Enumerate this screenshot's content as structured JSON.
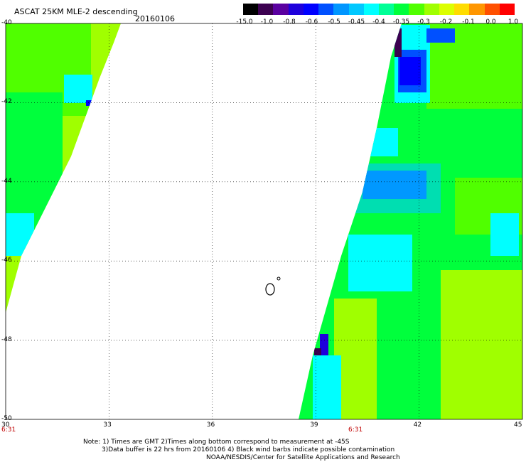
{
  "title": "ASCAT 25KM MLE-2 descending",
  "date": "20160106",
  "colorbar": {
    "labels": [
      "-15.0",
      "-1.0",
      "-0.8",
      "-0.6",
      "-0.5",
      "-0.45",
      "-0.4",
      "-0.35",
      "-0.3",
      "-0.2",
      "-0.1",
      "0.0",
      "1.0"
    ],
    "colors": [
      "#000000",
      "#3c0050",
      "#5a00a0",
      "#1e00dc",
      "#0000ff",
      "#0050ff",
      "#0096ff",
      "#00c8ff",
      "#00ffff",
      "#00ff96",
      "#00ff3c",
      "#50ff00",
      "#a0ff00",
      "#dcff00",
      "#ffdc00",
      "#ff9600",
      "#ff5000",
      "#ff0000"
    ]
  },
  "x_axis": {
    "labels": [
      "30",
      "33",
      "36",
      "39",
      "42",
      "45"
    ]
  },
  "y_axis": {
    "labels": [
      "-40",
      "-42",
      "-44",
      "-46",
      "-48",
      "-50"
    ]
  },
  "time_labels": [
    "6:31",
    "6:31"
  ],
  "notes": [
    "Note: 1) Times are GMT 2)Times along bottom correspond to measurement at -45S",
    "3)Data buffer is 22 hrs from 20160106 4) Black wind barbs indicate possible contamination",
    "NOAA/NESDIS/Center for Satellite Applications and Research"
  ],
  "colors": {
    "swath_green": "#00ff3c",
    "swath_cyan": "#00ffff",
    "swath_blue": "#0050ff",
    "swath_yellowgreen": "#a0ff00",
    "time_red": "#c00000"
  }
}
